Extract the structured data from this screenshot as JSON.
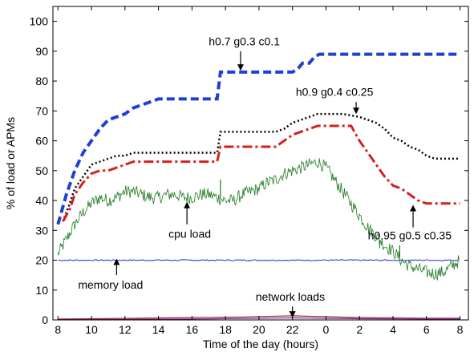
{
  "chart_data": {
    "type": "line",
    "xlabel": "Time of the day (hours)",
    "ylabel": "% of load or APMs",
    "ylim": [
      0,
      105
    ],
    "yticks": [
      0,
      10,
      20,
      30,
      40,
      50,
      60,
      70,
      80,
      90,
      100
    ],
    "x_range_hours_elapsed": [
      -0.3,
      24.5
    ],
    "xticks": [
      {
        "pos": 0,
        "label": "8"
      },
      {
        "pos": 2,
        "label": "10"
      },
      {
        "pos": 4,
        "label": "12"
      },
      {
        "pos": 6,
        "label": "14"
      },
      {
        "pos": 8,
        "label": "16"
      },
      {
        "pos": 10,
        "label": "18"
      },
      {
        "pos": 12,
        "label": "20"
      },
      {
        "pos": 14,
        "label": "22"
      },
      {
        "pos": 16,
        "label": "0"
      },
      {
        "pos": 18,
        "label": "2"
      },
      {
        "pos": 20,
        "label": "4"
      },
      {
        "pos": 22,
        "label": "6"
      },
      {
        "pos": 24,
        "label": "8"
      }
    ],
    "grid": false,
    "series": [
      {
        "id": "h07",
        "color": "#1f3fd8",
        "dash": "10,5",
        "width": 4,
        "points": [
          [
            0,
            32
          ],
          [
            0.5,
            42
          ],
          [
            1,
            50
          ],
          [
            1.5,
            56
          ],
          [
            2,
            60
          ],
          [
            2.5,
            64
          ],
          [
            3,
            67
          ],
          [
            3.5,
            68
          ],
          [
            4,
            69
          ],
          [
            4.5,
            71
          ],
          [
            5,
            72
          ],
          [
            5.5,
            73
          ],
          [
            6,
            74
          ],
          [
            6.5,
            74
          ],
          [
            7,
            74
          ],
          [
            8,
            74
          ],
          [
            9,
            74
          ],
          [
            9.5,
            74
          ],
          [
            9.7,
            83
          ],
          [
            10,
            83
          ],
          [
            11,
            83
          ],
          [
            13,
            83
          ],
          [
            14,
            83
          ],
          [
            14.3,
            84
          ],
          [
            14.6,
            86
          ],
          [
            15,
            86
          ],
          [
            15.3,
            88
          ],
          [
            15.6,
            89
          ],
          [
            16,
            89
          ],
          [
            18,
            89
          ],
          [
            20,
            89
          ],
          [
            22,
            89
          ],
          [
            24,
            89
          ]
        ]
      },
      {
        "id": "h09",
        "color": "#000000",
        "dash": "2,3",
        "width": 2.5,
        "points": [
          [
            0.3,
            33
          ],
          [
            0.7,
            39
          ],
          [
            1,
            44
          ],
          [
            1.5,
            48
          ],
          [
            2,
            52
          ],
          [
            2.5,
            53
          ],
          [
            3,
            54
          ],
          [
            3.5,
            55
          ],
          [
            4,
            55
          ],
          [
            4.5,
            56
          ],
          [
            5,
            56
          ],
          [
            6,
            56
          ],
          [
            7,
            56
          ],
          [
            8,
            56
          ],
          [
            9,
            56
          ],
          [
            9.5,
            56
          ],
          [
            9.7,
            63
          ],
          [
            10,
            63
          ],
          [
            11,
            63
          ],
          [
            12,
            63
          ],
          [
            13,
            63
          ],
          [
            13.5,
            64
          ],
          [
            14,
            66
          ],
          [
            14.5,
            67
          ],
          [
            15,
            68
          ],
          [
            15.5,
            69
          ],
          [
            16,
            69
          ],
          [
            17,
            69
          ],
          [
            18,
            68
          ],
          [
            18.5,
            67
          ],
          [
            19,
            66
          ],
          [
            19.5,
            64
          ],
          [
            20,
            61
          ],
          [
            20.5,
            60
          ],
          [
            21,
            58
          ],
          [
            21.5,
            57
          ],
          [
            22,
            55
          ],
          [
            22.5,
            54
          ],
          [
            23,
            54
          ],
          [
            24,
            54
          ]
        ]
      },
      {
        "id": "h095",
        "color": "#d42020",
        "dash": "12,4,3,4",
        "width": 3,
        "points": [
          [
            0.3,
            33
          ],
          [
            0.7,
            37
          ],
          [
            1,
            42
          ],
          [
            1.5,
            46
          ],
          [
            2,
            49
          ],
          [
            2.5,
            50
          ],
          [
            3,
            50
          ],
          [
            3.5,
            51
          ],
          [
            4,
            52
          ],
          [
            4.5,
            53
          ],
          [
            5,
            53
          ],
          [
            6,
            53
          ],
          [
            7,
            53
          ],
          [
            8,
            53
          ],
          [
            9,
            53
          ],
          [
            9.5,
            53
          ],
          [
            9.7,
            58
          ],
          [
            10,
            58
          ],
          [
            11,
            58
          ],
          [
            12,
            58
          ],
          [
            13,
            58
          ],
          [
            13.5,
            60
          ],
          [
            14,
            62
          ],
          [
            14.5,
            63
          ],
          [
            15,
            64
          ],
          [
            15.5,
            65
          ],
          [
            16,
            65
          ],
          [
            17,
            65
          ],
          [
            17.5,
            65
          ],
          [
            18,
            60
          ],
          [
            18.5,
            56
          ],
          [
            19,
            52
          ],
          [
            19.5,
            48
          ],
          [
            20,
            45
          ],
          [
            20.5,
            44
          ],
          [
            21,
            42
          ],
          [
            21.5,
            40
          ],
          [
            22,
            39
          ],
          [
            23,
            39
          ],
          [
            24,
            39
          ]
        ]
      }
    ],
    "cpu_load": {
      "color": "#1f7a1f",
      "noise": 2.2,
      "step": 0.05,
      "base": [
        [
          0,
          22
        ],
        [
          0.5,
          27
        ],
        [
          1,
          32
        ],
        [
          1.5,
          36
        ],
        [
          2,
          39
        ],
        [
          2.5,
          41
        ],
        [
          3,
          40
        ],
        [
          3.5,
          41
        ],
        [
          4,
          43
        ],
        [
          4.5,
          43
        ],
        [
          5,
          42
        ],
        [
          5.5,
          41
        ],
        [
          6,
          41
        ],
        [
          6.5,
          42
        ],
        [
          7,
          42
        ],
        [
          7.5,
          41
        ],
        [
          8,
          41
        ],
        [
          8.5,
          42
        ],
        [
          9,
          42
        ],
        [
          9.5,
          41
        ],
        [
          10,
          40
        ],
        [
          10.5,
          40
        ],
        [
          11,
          42
        ],
        [
          11.5,
          43
        ],
        [
          12,
          44
        ],
        [
          12.5,
          46
        ],
        [
          13,
          47
        ],
        [
          13.5,
          49
        ],
        [
          14,
          50
        ],
        [
          14.5,
          51
        ],
        [
          15,
          52
        ],
        [
          15.5,
          53
        ],
        [
          16,
          51
        ],
        [
          16.5,
          47
        ],
        [
          17,
          43
        ],
        [
          17.5,
          39
        ],
        [
          18,
          35
        ],
        [
          18.5,
          31
        ],
        [
          19,
          28
        ],
        [
          19.5,
          25
        ],
        [
          20,
          23
        ],
        [
          20.5,
          20
        ],
        [
          21,
          18
        ],
        [
          21.5,
          17
        ],
        [
          22,
          16
        ],
        [
          22.5,
          15.5
        ],
        [
          23,
          16
        ],
        [
          23.5,
          18
        ],
        [
          24,
          20
        ]
      ],
      "spikes": [
        [
          9.7,
          47
        ],
        [
          20.4,
          25
        ],
        [
          19.2,
          24
        ]
      ]
    },
    "memory_load": {
      "color": "#2a3fc8",
      "value": 20
    },
    "network_loads": [
      {
        "color": "#b22222",
        "points": [
          [
            0,
            0.3
          ],
          [
            4,
            0.5
          ],
          [
            8,
            0.8
          ],
          [
            11,
            1.0
          ],
          [
            14,
            1.4
          ],
          [
            15,
            1.2
          ],
          [
            18,
            0.8
          ],
          [
            22,
            0.6
          ],
          [
            24,
            0.6
          ]
        ]
      },
      {
        "color": "#6a2c91",
        "points": [
          [
            0,
            0.1
          ],
          [
            4,
            0.2
          ],
          [
            8,
            0.3
          ],
          [
            11,
            0.5
          ],
          [
            14,
            0.7
          ],
          [
            15,
            0.6
          ],
          [
            18,
            0.4
          ],
          [
            22,
            0.3
          ],
          [
            24,
            0.3
          ]
        ]
      }
    ],
    "annotations": [
      {
        "id": "ann-h07",
        "text": "h0.7 g0.3 c0.1",
        "text_x": 9,
        "text_y": 92,
        "arrow_from": [
          10.9,
          90
        ],
        "arrow_to": [
          10.9,
          84
        ]
      },
      {
        "id": "ann-h09",
        "text": "h0.9 g0.4 c0.25",
        "text_x": 14.2,
        "text_y": 75,
        "arrow_from": [
          17.8,
          73
        ],
        "arrow_to": [
          17.8,
          69.5
        ]
      },
      {
        "id": "ann-h095",
        "text": "h0.95 g0.5 c0.35",
        "text_x": 18.5,
        "text_y": 27,
        "arrow_from": [
          21.2,
          31
        ],
        "arrow_to": [
          21.2,
          38
        ]
      },
      {
        "id": "ann-cpu",
        "text": "cpu load",
        "text_x": 6.6,
        "text_y": 27.5,
        "arrow_from": [
          7.7,
          32
        ],
        "arrow_to": [
          7.7,
          39
        ]
      },
      {
        "id": "ann-memory",
        "text": "memory load",
        "text_x": 1.2,
        "text_y": 10.5,
        "arrow_from": [
          3.5,
          15
        ],
        "arrow_to": [
          3.5,
          20
        ]
      },
      {
        "id": "ann-network",
        "text": "network loads",
        "text_x": 11.8,
        "text_y": 6.5,
        "arrow_from": [
          14,
          4.5
        ],
        "arrow_to": [
          14,
          1.3
        ]
      }
    ]
  }
}
